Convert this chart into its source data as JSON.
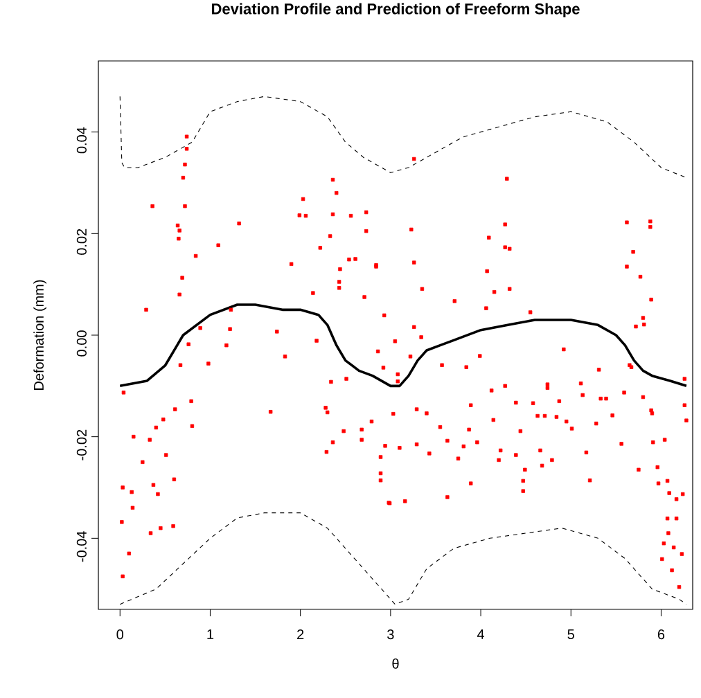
{
  "chart_data": {
    "type": "scatter",
    "title": "Deviation Profile and Prediction of Freeform Shape",
    "xlabel": "θ",
    "ylabel": "Deformation (mm)",
    "xlim": [
      -0.24,
      6.35
    ],
    "ylim": [
      -0.054,
      0.054
    ],
    "xticks": [
      0,
      1,
      2,
      3,
      4,
      5,
      6
    ],
    "yticks": [
      -0.04,
      -0.02,
      {
        "value": 0,
        "label": "0.00"
      },
      0.02,
      0.04
    ],
    "series": [
      {
        "color": "#ff0000",
        "marker": "square",
        "x": [
          0.74,
          0.74,
          0.72,
          0.7,
          0.36,
          0.72,
          0.64,
          0.66,
          0.65,
          0.69,
          0.66,
          0.84,
          1.09,
          1.32,
          0.29,
          1.9,
          2.36,
          2.4,
          2.03,
          1.99,
          2.06,
          2.36,
          2.56,
          2.73,
          2.73,
          2.33,
          2.22,
          2.54,
          2.61,
          2.84,
          2.44,
          2.43,
          2.14,
          2.71,
          2.93,
          2.43,
          1.74,
          1.22,
          1.23,
          0.89,
          3.26,
          4.29,
          3.23,
          4.27,
          4.09,
          4.27,
          4.32,
          3.26,
          2.84,
          5.62,
          5.88,
          5.88,
          5.69,
          5.62,
          5.77,
          5.89,
          4.07,
          4.15,
          4.32,
          3.71,
          3.35,
          4.06,
          4.55,
          3.26,
          5.8,
          5.72,
          0.04,
          0.15,
          0.03,
          0.02,
          0.03,
          0.1,
          0.13,
          0.14,
          0.34,
          0.45,
          0.42,
          0.37,
          0.25,
          0.33,
          0.4,
          0.48,
          0.51,
          0.6,
          0.8,
          0.79,
          0.61,
          0.59,
          0.67,
          0.76,
          0.98,
          1.18,
          1.67,
          1.83,
          2.28,
          2.3,
          2.29,
          2.36,
          2.48,
          2.68,
          2.68,
          2.79,
          2.89,
          2.89,
          2.99,
          2.34,
          2.18,
          2.51,
          2.89,
          2.98,
          3.16,
          3.03,
          2.94,
          3.1,
          3.29,
          3.29,
          3.43,
          3.4,
          3.55,
          3.63,
          3.63,
          3.75,
          3.81,
          3.87,
          3.89,
          3.89,
          3.96,
          4.14,
          4.22,
          4.2,
          4.39,
          4.47,
          4.47,
          4.49,
          4.44,
          4.63,
          4.71,
          4.66,
          4.68,
          4.79,
          4.84,
          5.01,
          4.95,
          5.17,
          5.21,
          5.28,
          5.46,
          5.56,
          5.75,
          5.91,
          5.96,
          6.04,
          5.97,
          6.07,
          6.09,
          6.17,
          6.24,
          6.07,
          6.17,
          6.08,
          6.03,
          6.14,
          6.23,
          6.01,
          6.12,
          6.2,
          6.28,
          6.26,
          6.26,
          5.89,
          5.9,
          5.8,
          5.59,
          5.39,
          5.33,
          5.13,
          5.11,
          4.87,
          4.74,
          4.74,
          4.58,
          4.39,
          4.27,
          4.12,
          3.99,
          3.84,
          3.57,
          3.22,
          3.05,
          2.86,
          2.92,
          3.08,
          3.08,
          3.34,
          4.92,
          5.31,
          5.65,
          5.67,
          5.81
        ],
        "values": [
          0.0391,
          0.0367,
          0.0336,
          0.031,
          0.0254,
          0.0254,
          0.0216,
          0.0206,
          0.019,
          0.0113,
          0.008,
          0.0156,
          0.0177,
          0.022,
          0.005,
          0.014,
          0.0306,
          0.028,
          0.0268,
          0.0236,
          0.0235,
          0.0238,
          0.0235,
          0.0242,
          0.0205,
          0.0195,
          0.0172,
          0.0149,
          0.015,
          0.0135,
          0.013,
          0.0105,
          0.0083,
          0.0075,
          0.0039,
          0.0093,
          0.0007,
          0.0012,
          0.005,
          0.0014,
          0.0347,
          0.0308,
          0.0208,
          0.0218,
          0.0192,
          0.0173,
          0.017,
          0.0143,
          0.0138,
          0.0222,
          0.0224,
          0.0213,
          0.0164,
          0.0135,
          0.0115,
          0.007,
          0.0126,
          0.0085,
          0.0091,
          0.0067,
          0.0091,
          0.0053,
          0.0045,
          0.0016,
          0.0034,
          0.0017,
          -0.0113,
          -0.02,
          -0.03,
          -0.0368,
          -0.0475,
          -0.043,
          -0.0309,
          -0.034,
          -0.039,
          -0.038,
          -0.0313,
          -0.0295,
          -0.025,
          -0.0206,
          -0.0182,
          -0.0166,
          -0.0236,
          -0.0284,
          -0.0179,
          -0.013,
          -0.0146,
          -0.0376,
          -0.0059,
          -0.0018,
          -0.0056,
          -0.002,
          -0.0151,
          -0.0042,
          -0.0143,
          -0.0152,
          -0.023,
          -0.0211,
          -0.0189,
          -0.0186,
          -0.0206,
          -0.017,
          -0.024,
          -0.0272,
          -0.0331,
          -0.0092,
          -0.0011,
          -0.0086,
          -0.0286,
          -0.033,
          -0.0327,
          -0.0155,
          -0.0218,
          -0.0222,
          -0.0215,
          -0.0146,
          -0.0233,
          -0.0154,
          -0.0181,
          -0.0208,
          -0.0319,
          -0.0243,
          -0.0219,
          -0.0186,
          -0.0292,
          -0.0138,
          -0.0211,
          -0.0167,
          -0.0227,
          -0.0246,
          -0.0236,
          -0.0287,
          -0.0307,
          -0.0265,
          -0.0189,
          -0.0159,
          -0.0159,
          -0.0227,
          -0.0257,
          -0.0246,
          -0.0161,
          -0.0184,
          -0.017,
          -0.0231,
          -0.0286,
          -0.0174,
          -0.0158,
          -0.0214,
          -0.0265,
          -0.0211,
          -0.026,
          -0.0206,
          -0.0292,
          -0.0287,
          -0.0311,
          -0.0323,
          -0.0313,
          -0.0361,
          -0.0361,
          -0.039,
          -0.041,
          -0.0418,
          -0.0431,
          -0.0441,
          -0.0463,
          -0.0496,
          -0.0168,
          -0.0138,
          -0.0086,
          -0.0148,
          -0.0154,
          -0.0122,
          -0.0113,
          -0.0125,
          -0.0125,
          -0.0118,
          -0.0095,
          -0.013,
          -0.0097,
          -0.0104,
          -0.0134,
          -0.0133,
          -0.01,
          -0.0109,
          -0.0041,
          -0.0063,
          -0.0059,
          -0.0042,
          -0.0012,
          -0.0032,
          -0.0064,
          -0.0091,
          -0.0077,
          -0.0004,
          -0.0028,
          -0.0068,
          -0.0059,
          -0.0063,
          0.0021
        ]
      },
      {
        "type": "line",
        "color": "#000000",
        "line_style": "solid",
        "x": [
          0,
          0.3,
          0.5,
          0.7,
          1.0,
          1.3,
          1.5,
          1.8,
          2.0,
          2.2,
          2.3,
          2.4,
          2.5,
          2.65,
          2.8,
          3.0,
          3.1,
          3.2,
          3.3,
          3.4,
          3.55,
          3.7,
          4.0,
          4.3,
          4.6,
          5.0,
          5.3,
          5.5,
          5.6,
          5.7,
          5.8,
          5.9,
          6.1,
          6.28
        ],
        "values": [
          -0.01,
          -0.009,
          -0.006,
          0.0,
          0.004,
          0.006,
          0.006,
          0.005,
          0.005,
          0.004,
          0.002,
          -0.002,
          -0.005,
          -0.007,
          -0.008,
          -0.01,
          -0.01,
          -0.008,
          -0.005,
          -0.003,
          -0.002,
          -0.001,
          0.001,
          0.002,
          0.003,
          0.003,
          0.002,
          0.0,
          -0.002,
          -0.005,
          -0.007,
          -0.008,
          -0.009,
          -0.01
        ]
      },
      {
        "type": "line",
        "color": "#000000",
        "line_style": "dashed",
        "x": [
          0,
          0.02,
          0.05,
          0.2,
          0.5,
          0.8,
          1.0,
          1.3,
          1.6,
          2.0,
          2.3,
          2.5,
          2.7,
          2.9,
          3.0,
          3.2,
          3.5,
          3.8,
          4.2,
          4.6,
          5.0,
          5.4,
          5.7,
          6.0,
          6.28
        ],
        "values": [
          0.047,
          0.034,
          0.033,
          0.033,
          0.035,
          0.038,
          0.044,
          0.046,
          0.047,
          0.046,
          0.043,
          0.038,
          0.035,
          0.033,
          0.032,
          0.033,
          0.036,
          0.039,
          0.041,
          0.043,
          0.044,
          0.042,
          0.038,
          0.033,
          0.031
        ]
      },
      {
        "type": "line",
        "color": "#000000",
        "line_style": "dashed",
        "x": [
          0,
          0.4,
          0.7,
          1.0,
          1.3,
          1.6,
          2.0,
          2.3,
          2.6,
          2.9,
          3.05,
          3.2,
          3.4,
          3.7,
          4.1,
          4.5,
          4.9,
          5.3,
          5.6,
          5.9,
          6.2,
          6.28
        ],
        "values": [
          -0.053,
          -0.05,
          -0.045,
          -0.04,
          -0.036,
          -0.035,
          -0.035,
          -0.038,
          -0.044,
          -0.05,
          -0.053,
          -0.052,
          -0.046,
          -0.042,
          -0.04,
          -0.039,
          -0.038,
          -0.04,
          -0.044,
          -0.05,
          -0.052,
          -0.053
        ]
      }
    ]
  }
}
